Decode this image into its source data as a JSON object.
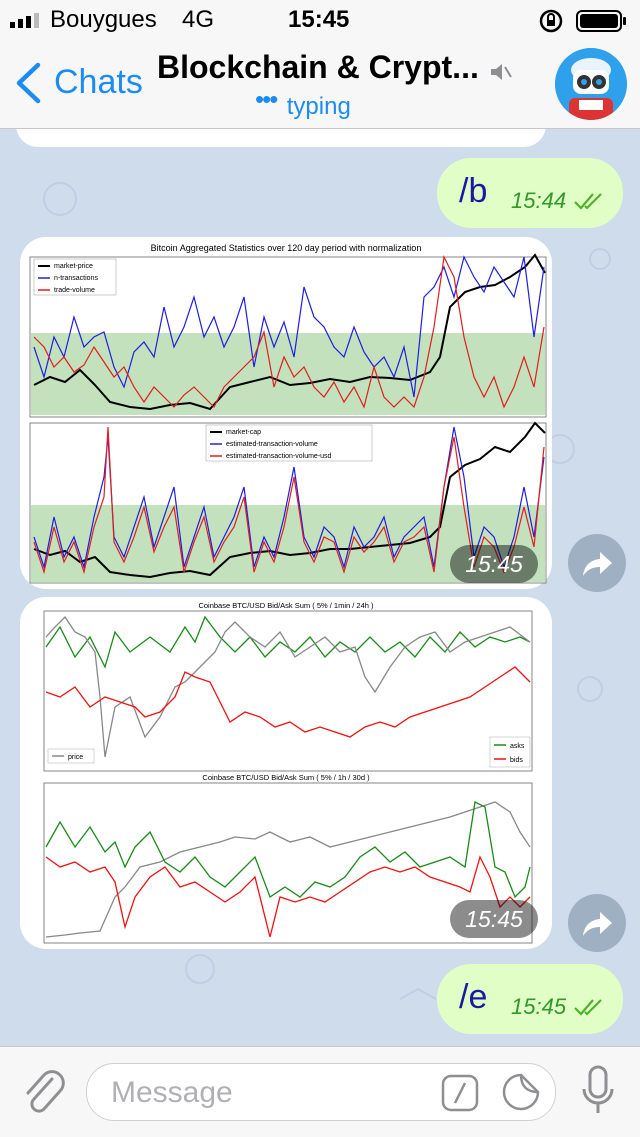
{
  "status": {
    "carrier": "Bouygues",
    "network": "4G",
    "time": "15:45"
  },
  "nav": {
    "back_label": "Chats",
    "title": "Blockchain & Crypt...",
    "subtitle": "typing"
  },
  "messages": {
    "m1": {
      "text": "/b",
      "time": "15:44"
    },
    "m4": {
      "text": "/e",
      "time": "15:45"
    }
  },
  "images": {
    "img1": {
      "time": "15:45",
      "title": "Bitcoin Aggregated Statistics over 120 day period with normalization",
      "legend_top": [
        "market-price",
        "n-transactions",
        "trade-volume"
      ],
      "legend_bottom": [
        "market-cap",
        "estimated-transaction-volume",
        "estimated-transaction-volume-usd"
      ],
      "colors": {
        "black": "#000000",
        "blue": "#1f1fe0",
        "red": "#e01f1f",
        "band": "#a8d4a0"
      }
    },
    "img2": {
      "time": "15:45",
      "title_top": "Coinbase BTC/USD Bid/Ask Sum ( 5% / 1min / 24h )",
      "title_bottom": "Coinbase BTC/USD Bid/Ask Sum ( 5% / 1h / 30d )",
      "legend_price": "price",
      "legend_asks": "asks",
      "legend_bids": "bids",
      "colors": {
        "price": "#888888",
        "asks": "#1a8a1a",
        "bids": "#ee1111"
      }
    }
  },
  "input": {
    "placeholder": "Message"
  },
  "colors": {
    "accent": "#1d8cf2",
    "out_bubble": "#e1fec6",
    "check": "#4fb12c"
  }
}
